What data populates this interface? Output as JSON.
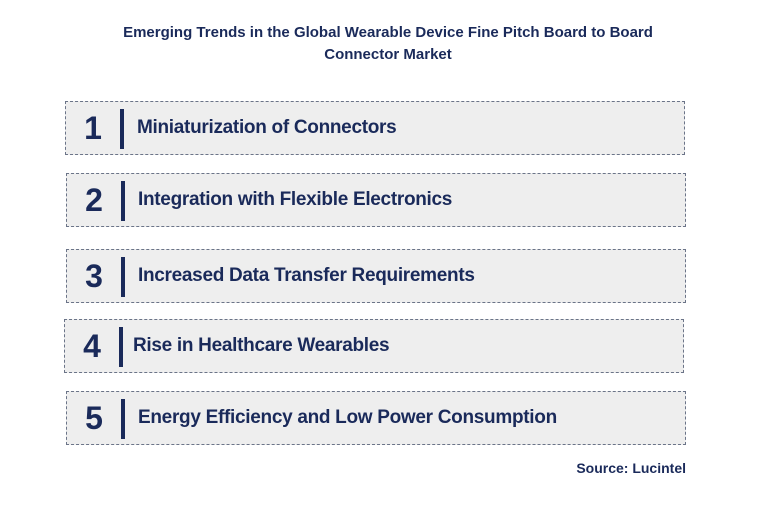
{
  "title": {
    "line1": "Emerging Trends in the Global Wearable Device Fine Pitch Board to Board",
    "line2": "Connector Market"
  },
  "trends": [
    {
      "number": "1",
      "label": "Miniaturization of Connectors"
    },
    {
      "number": "2",
      "label": "Integration with Flexible Electronics"
    },
    {
      "number": "3",
      "label": "Increased Data Transfer Requirements"
    },
    {
      "number": "4",
      "label": "Rise in Healthcare Wearables"
    },
    {
      "number": "5",
      "label": "Energy Efficiency and Low Power Consumption"
    }
  ],
  "source": "Source: Lucintel",
  "colors": {
    "text": "#1a2a5a",
    "box_fill": "#eeeeee",
    "box_border": "#6b7488"
  }
}
